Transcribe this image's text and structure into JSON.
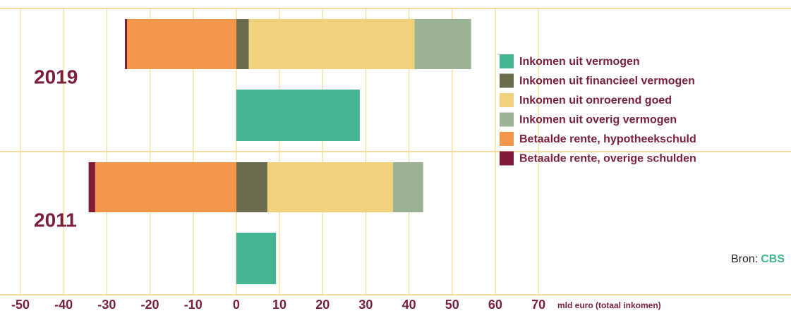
{
  "chart_data": {
    "type": "bar",
    "orientation": "horizontal",
    "categories": [
      "2019",
      "2011"
    ],
    "series": [
      {
        "name": "Inkomen uit vermogen",
        "color": "#45b492",
        "values": [
          28.6,
          9.2
        ]
      },
      {
        "name": "Inkomen uit financieel vermogen",
        "color": "#6b6b4e",
        "values": [
          2.9,
          7.2
        ]
      },
      {
        "name": "Inkomen uit onroerend goed",
        "color": "#f2d27f",
        "values": [
          38.4,
          29.1
        ]
      },
      {
        "name": "Inkomen uit overig vermogen",
        "color": "#9bb394",
        "values": [
          13.1,
          7.0
        ]
      },
      {
        "name": "Betaalde rente, hypotheekschuld",
        "color": "#f5974a",
        "values": [
          -25.3,
          -32.7
        ]
      },
      {
        "name": "Betaalde rente, overige schulden",
        "color": "#7f1a37",
        "values": [
          -0.5,
          -1.5
        ]
      }
    ],
    "x_label": "mld euro (totaal inkomen)",
    "xlim": [
      -50,
      120
    ],
    "xticks": [
      -50,
      -40,
      -30,
      -20,
      -10,
      0,
      10,
      20,
      30,
      40,
      50,
      60,
      70
    ],
    "grid": true,
    "legend": "right",
    "source_label": "Bron:",
    "source": "CBS"
  }
}
